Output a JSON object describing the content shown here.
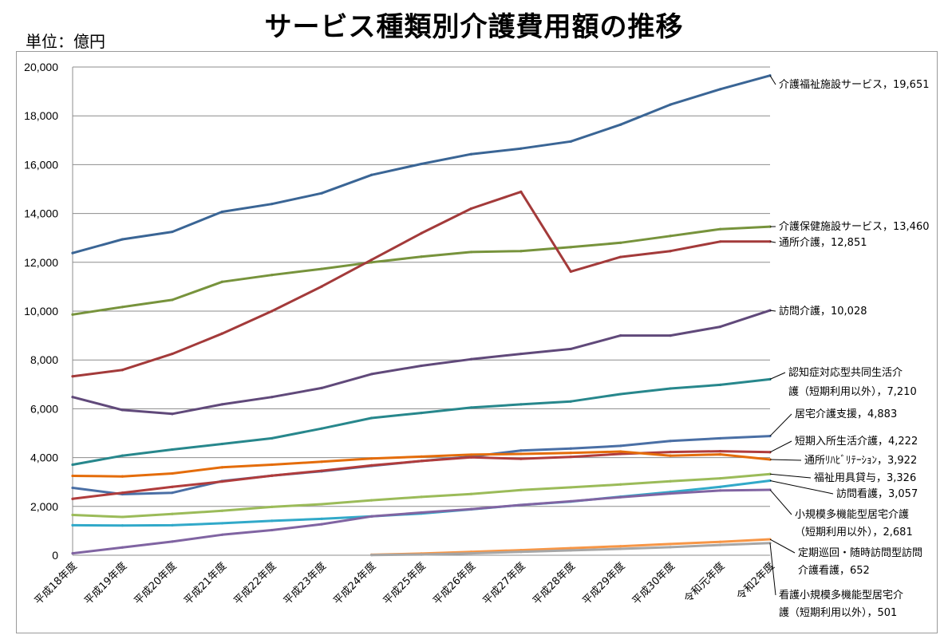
{
  "title": "サービス種類別介護費用額の推移",
  "unit_label": "単位：億円",
  "chart_data": {
    "type": "line",
    "title": "サービス種類別介護費用額の推移",
    "ylabel": "単位：億円",
    "ylim": [
      0,
      20000
    ],
    "y_ticks": [
      "0",
      "2,000",
      "4,000",
      "6,000",
      "8,000",
      "10,000",
      "12,000",
      "14,000",
      "16,000",
      "18,000",
      "20,000"
    ],
    "grid": true,
    "legend": "end-of-line labels (right)",
    "categories": [
      "平成18年度",
      "平成19年度",
      "平成20年度",
      "平成21年度",
      "平成22年度",
      "平成23年度",
      "平成24年度",
      "平成25年度",
      "平成26年度",
      "平成27年度",
      "平成28年度",
      "平成29年度",
      "平成30年度",
      "令和元年度",
      "令和2年度"
    ],
    "series": [
      {
        "name": "介護福祉施設サービス",
        "color": "#3a6595",
        "label_lines": [
          "介護福祉施設サービス，19,651"
        ],
        "values": [
          12380,
          12940,
          13250,
          14070,
          14390,
          14830,
          15580,
          16030,
          16430,
          16660,
          16950,
          17640,
          18460,
          19090,
          19651
        ]
      },
      {
        "name": "介護保健施設サービス",
        "color": "#77933c",
        "label_lines": [
          "介護保健施設サービス，13,460"
        ],
        "values": [
          9860,
          10170,
          10460,
          11200,
          11480,
          11730,
          12000,
          12230,
          12420,
          12460,
          12620,
          12800,
          13080,
          13360,
          13460
        ]
      },
      {
        "name": "通所介護",
        "color": "#a33a3a",
        "label_lines": [
          "通所介護，12,851"
        ],
        "values": [
          7330,
          7590,
          8250,
          9080,
          10000,
          11010,
          12100,
          13190,
          14200,
          14890,
          11620,
          12220,
          12460,
          12850,
          12851
        ]
      },
      {
        "name": "訪問介護",
        "color": "#60497a",
        "label_lines": [
          "訪問介護，10,028"
        ],
        "values": [
          6480,
          5950,
          5790,
          6180,
          6480,
          6850,
          7420,
          7760,
          8030,
          8250,
          8450,
          9000,
          9000,
          9360,
          10028
        ]
      },
      {
        "name": "認知症対応型共同生活介護（短期利用以外）",
        "color": "#27878c",
        "label_lines": [
          "認知症対応型共同生活介",
          "護（短期利用以外），7,210"
        ],
        "values": [
          3710,
          4080,
          4330,
          4560,
          4790,
          5190,
          5620,
          5830,
          6050,
          6180,
          6300,
          6600,
          6830,
          6980,
          7210
        ]
      },
      {
        "name": "居宅介護支援",
        "color": "#4a6fa5",
        "label_lines": [
          "居宅介護支援，4,883"
        ],
        "values": [
          2760,
          2500,
          2560,
          3040,
          3260,
          3440,
          3660,
          3860,
          4040,
          4290,
          4370,
          4480,
          4680,
          4790,
          4883
        ]
      },
      {
        "name": "短期入所生活介護",
        "color": "#b03c3c",
        "label_lines": [
          "短期入所生活介護，4,222"
        ],
        "values": [
          2310,
          2560,
          2800,
          3020,
          3260,
          3460,
          3680,
          3860,
          4010,
          3950,
          4030,
          4150,
          4230,
          4260,
          4222
        ]
      },
      {
        "name": "通所リハビリテーション",
        "color": "#e46c0a",
        "label_lines": [
          "通所ﾘﾊﾋﾞﾘﾃｰｼｮﾝ，3,922"
        ],
        "values": [
          3250,
          3230,
          3350,
          3600,
          3710,
          3830,
          3960,
          4040,
          4120,
          4150,
          4190,
          4250,
          4080,
          4130,
          3922
        ]
      },
      {
        "name": "福祉用具貸与",
        "color": "#9bbb59",
        "label_lines": [
          "福祉用具貸与，3,326"
        ],
        "values": [
          1650,
          1570,
          1690,
          1820,
          1980,
          2090,
          2250,
          2390,
          2510,
          2670,
          2780,
          2900,
          3030,
          3150,
          3326
        ]
      },
      {
        "name": "訪問看護",
        "color": "#31a9c9",
        "label_lines": [
          "訪問看護，3,057"
        ],
        "values": [
          1230,
          1220,
          1230,
          1310,
          1410,
          1490,
          1590,
          1710,
          1880,
          2060,
          2200,
          2400,
          2590,
          2800,
          3057
        ]
      },
      {
        "name": "小規模多機能型居宅介護（短期利用以外）",
        "color": "#8064a2",
        "label_lines": [
          "小規模多機能型居宅介護",
          "（短期利用以外），2,681"
        ],
        "values": [
          80,
          320,
          560,
          840,
          1030,
          1270,
          1590,
          1750,
          1890,
          2060,
          2210,
          2380,
          2530,
          2650,
          2681
        ]
      },
      {
        "name": "定期巡回・随時訪問型訪問介護看護",
        "color": "#f79646",
        "label_lines": [
          "定期巡回・随時訪問型訪問",
          "介護看護，652"
        ],
        "values": [
          null,
          null,
          null,
          null,
          null,
          null,
          20,
          70,
          140,
          210,
          290,
          370,
          460,
          550,
          652
        ]
      },
      {
        "name": "看護小規模多機能型居宅介護（短期利用以外）",
        "color": "#a6a6a6",
        "label_lines": [
          "看護小規模多機能型居宅介",
          "護（短期利用以外），501"
        ],
        "values": [
          null,
          null,
          null,
          null,
          null,
          null,
          10,
          30,
          80,
          140,
          200,
          260,
          330,
          420,
          501
        ]
      }
    ]
  }
}
